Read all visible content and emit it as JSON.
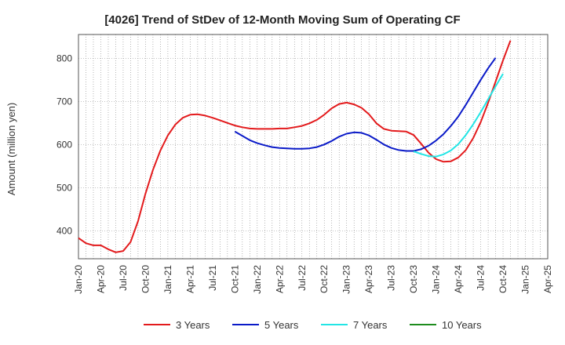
{
  "chart_data": {
    "type": "line",
    "title": "[4026]  Trend of StDev of 12-Month Moving Sum of Operating CF",
    "ylabel": "Amount (million yen)",
    "xlabel": "",
    "ylim": [
      335,
      855
    ],
    "y_ticks": [
      400,
      500,
      600,
      700,
      800
    ],
    "x_tick_labels": [
      "Jan-20",
      "Apr-20",
      "Jul-20",
      "Oct-20",
      "Jan-21",
      "Apr-21",
      "Jul-21",
      "Oct-21",
      "Jan-22",
      "Apr-22",
      "Jul-22",
      "Oct-22",
      "Jan-23",
      "Apr-23",
      "Jul-23",
      "Oct-23",
      "Jan-24",
      "Apr-24",
      "Jul-24",
      "Oct-24",
      "Jan-25",
      "Apr-25"
    ],
    "grid": true,
    "legend_position": "bottom",
    "series": [
      {
        "name": "3 Years",
        "color": "#e31a1c",
        "start": "Jan-20",
        "values": [
          383,
          371,
          366,
          366,
          357,
          350,
          353,
          374,
          422,
          486,
          541,
          586,
          621,
          646,
          662,
          669,
          670,
          667,
          662,
          656,
          650,
          644,
          640,
          637,
          636,
          636,
          636,
          637,
          637,
          640,
          643,
          649,
          657,
          669,
          684,
          694,
          697,
          693,
          685,
          670,
          649,
          636,
          632,
          631,
          630,
          622,
          602,
          581,
          566,
          560,
          561,
          570,
          587,
          615,
          652,
          697,
          746,
          795,
          841
        ]
      },
      {
        "name": "5 Years",
        "color": "#0a1ac8",
        "start": "Oct-21",
        "values": [
          630,
          620,
          610,
          603,
          598,
          594,
          592,
          591,
          590,
          590,
          591,
          594,
          600,
          608,
          618,
          625,
          628,
          627,
          621,
          611,
          600,
          592,
          587,
          585,
          585,
          589,
          597,
          609,
          624,
          643,
          665,
          692,
          721,
          750,
          777,
          801
        ]
      },
      {
        "name": "7 Years",
        "color": "#22e5e5",
        "start": "Oct-23",
        "values": [
          584,
          578,
          573,
          572,
          577,
          586,
          601,
          622,
          647,
          675,
          705,
          735,
          764
        ]
      },
      {
        "name": "10 Years",
        "color": "#1e8c1e",
        "start": "Oct-23",
        "values": []
      }
    ]
  }
}
